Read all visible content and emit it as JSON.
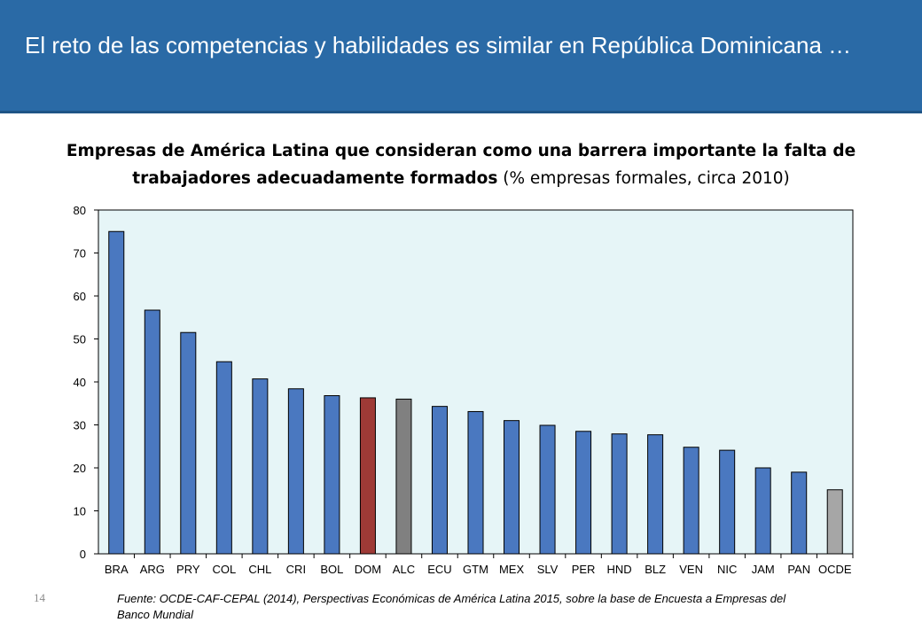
{
  "header": {
    "title": "El reto de las competencias y habilidades es similar en República Dominicana …"
  },
  "chart_title": {
    "bold_part": "Empresas de América Latina que consideran como una barrera importante la falta de trabajadores adecuadamente formados",
    "normal_part": " (% empresas formales, circa 2010)"
  },
  "colors": {
    "header_bg": "#2a6aa6",
    "plot_bg": "#e6f5f7",
    "bar_default": "#4a78c0",
    "bar_dom": "#9e3a36",
    "bar_alc": "#808080",
    "bar_ocde": "#a6a6a6"
  },
  "chart_data": {
    "type": "bar",
    "title": "Empresas de América Latina que consideran como una barrera importante la falta de trabajadores adecuadamente formados (% empresas formales, circa 2010)",
    "xlabel": "",
    "ylabel": "",
    "ylim": [
      0,
      80
    ],
    "yticks": [
      0,
      10,
      20,
      30,
      40,
      50,
      60,
      70,
      80
    ],
    "grid": false,
    "legend": "none",
    "categories": [
      "BRA",
      "ARG",
      "PRY",
      "COL",
      "CHL",
      "CRI",
      "BOL",
      "DOM",
      "ALC",
      "ECU",
      "GTM",
      "MEX",
      "SLV",
      "PER",
      "HND",
      "BLZ",
      "VEN",
      "NIC",
      "JAM",
      "PAN",
      "OCDE"
    ],
    "values": [
      75,
      56.7,
      51.5,
      44.7,
      40.7,
      38.4,
      36.8,
      36.3,
      36,
      34.3,
      33.1,
      31,
      29.9,
      28.5,
      27.9,
      27.7,
      24.8,
      24.1,
      20,
      19,
      14.9
    ],
    "highlight": {
      "DOM": "#9e3a36",
      "ALC": "#808080",
      "OCDE": "#a6a6a6"
    }
  },
  "footer": {
    "page_number": "14",
    "source": "Fuente: OCDE-CAF-CEPAL (2014), Perspectivas Económicas de América Latina 2015, sobre la base de Encuesta a Empresas del Banco Mundial"
  }
}
